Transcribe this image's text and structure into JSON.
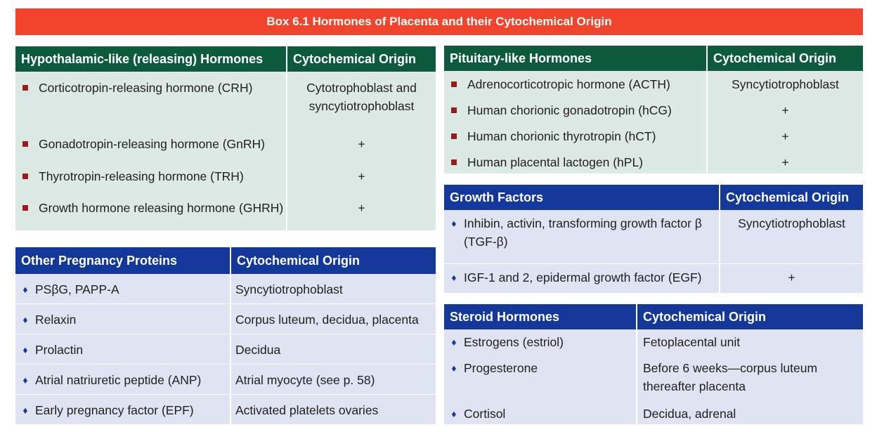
{
  "title": "Box 6.1  Hormones of Placenta and their Cytochemical Origin",
  "hypothalamic": {
    "headers": [
      "Hypothalamic-like (releasing) Hormones",
      "Cytochemical Origin"
    ],
    "rows": [
      {
        "name": "Corticotropin-releasing hormone (CRH)",
        "origin": "Cytotrophoblast and syncytiotrophoblast"
      },
      {
        "name": "Gonadotropin-releasing hormone (GnRH)",
        "origin": "+"
      },
      {
        "name": "Thyrotropin-releasing hormone (TRH)",
        "origin": "+"
      },
      {
        "name": "Growth hormone releasing hormone (GHRH)",
        "origin": "+"
      }
    ]
  },
  "pituitary": {
    "headers": [
      "Pituitary-like Hormones",
      "Cytochemical Origin"
    ],
    "rows": [
      {
        "name": "Adrenocorticotropic hormone (ACTH)",
        "origin": "Syncytiotrophoblast"
      },
      {
        "name": "Human chorionic gonadotropin (hCG)",
        "origin": "+"
      },
      {
        "name": "Human chorionic thyrotropin (hCT)",
        "origin": "+"
      },
      {
        "name": "Human placental lactogen (hPL)",
        "origin": "+"
      }
    ]
  },
  "growth": {
    "headers": [
      "Growth Factors",
      "Cytochemical Origin"
    ],
    "rows": [
      {
        "name": "Inhibin, activin, transforming growth factor β (TGF-β)",
        "origin": "Syncytiotrophoblast"
      },
      {
        "name": "IGF-1 and 2, epidermal growth factor (EGF)",
        "origin": "+"
      }
    ]
  },
  "other": {
    "headers": [
      "Other Pregnancy Proteins",
      "Cytochemical Origin"
    ],
    "rows": [
      {
        "name": "PSβG, PAPP-A",
        "origin": "Syncytiotrophoblast"
      },
      {
        "name": "Relaxin",
        "origin": "Corpus luteum, decidua, placenta"
      },
      {
        "name": "Prolactin",
        "origin": "Decidua"
      },
      {
        "name": "Atrial natriuretic peptide (ANP)",
        "origin": "Atrial myocyte (see p. 58)"
      },
      {
        "name": "Early pregnancy factor (EPF)",
        "origin": "Activated platelets ovaries"
      }
    ]
  },
  "steroid": {
    "headers": [
      "Steroid Hormones",
      "Cytochemical Origin"
    ],
    "rows": [
      {
        "name": "Estrogens (estriol)",
        "origin": "Fetoplacental unit"
      },
      {
        "name": "Progesterone",
        "origin": "Before 6 weeks—corpus luteum thereafter placenta"
      },
      {
        "name": "Cortisol",
        "origin": "Decidua, adrenal"
      }
    ]
  },
  "colors": {
    "title_bar": "#f0442c",
    "green_header": "#0d5a3e",
    "green_body": "#dde9e4",
    "blue_header": "#14379a",
    "blue_body": "#e0e3f1",
    "square_bullet": "#9b1b1b",
    "diamond_bullet": "#14379a"
  }
}
